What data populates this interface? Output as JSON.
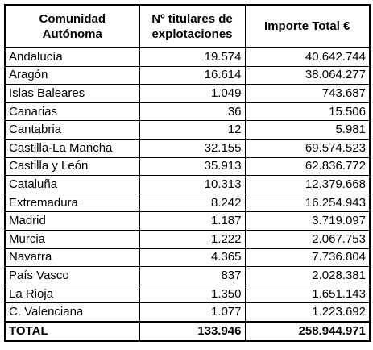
{
  "table": {
    "header": [
      [
        "Comunidad",
        "Autónoma"
      ],
      [
        "Nº titulares de",
        "explotaciones"
      ],
      [
        "Importe Total €"
      ]
    ],
    "rows": [
      [
        "Andalucía",
        "19.574",
        "40.642.744"
      ],
      [
        "Aragón",
        "16.614",
        "38.064.277"
      ],
      [
        "Islas Baleares",
        "1.049",
        "743.687"
      ],
      [
        "Canarias",
        "36",
        "15.506"
      ],
      [
        "Cantabria",
        "12",
        "5.981"
      ],
      [
        "Castilla-La Mancha",
        "32.155",
        "69.574.523"
      ],
      [
        "Castilla y León",
        "35.913",
        "62.836.772"
      ],
      [
        "Cataluña",
        "10.313",
        "12.379.668"
      ],
      [
        "Extremadura",
        "8.242",
        "16.254.943"
      ],
      [
        "Madrid",
        "1.187",
        "3.719.097"
      ],
      [
        "Murcia",
        "1.222",
        "2.067.753"
      ],
      [
        "Navarra",
        "4.365",
        "7.736.804"
      ],
      [
        "País Vasco",
        "837",
        "2.028.381"
      ],
      [
        "La Rioja",
        "1.350",
        "1.651.143"
      ],
      [
        "C. Valenciana",
        "1.077",
        "1.223.692"
      ]
    ],
    "total": [
      "TOTAL",
      "133.946",
      "258.944.971"
    ]
  }
}
